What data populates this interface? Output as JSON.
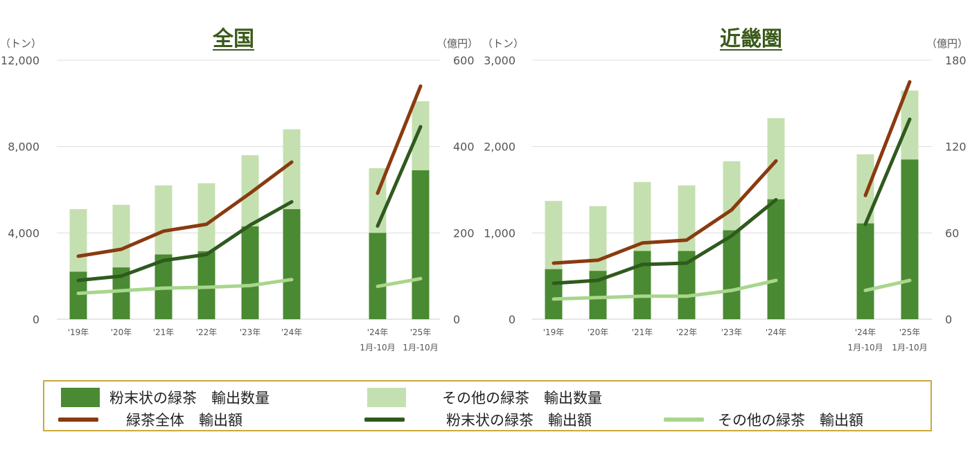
{
  "colors": {
    "powder_bar": "#4a8a32",
    "other_bar": "#c5e0b0",
    "total_line": "#8a3a10",
    "powder_line": "#2f5a1e",
    "other_line": "#a8d68c",
    "title": "#3a5a1a",
    "grid": "#dddddd",
    "axis_text": "#555555",
    "legend_border": "#c9a93a"
  },
  "legend": {
    "powder_qty": "粉末状の緑茶　輸出数量",
    "other_qty": "その他の緑茶　輸出数量",
    "total_val": "緑茶全体　輸出額",
    "powder_val": "粉末状の緑茶　輸出額",
    "other_val": "その他の緑茶　輸出額"
  },
  "chart_data": [
    {
      "type": "bar",
      "title": "全国",
      "ylabel_left": "（トン）",
      "ylabel_right": "（億円）",
      "ylim_left": [
        0,
        12000
      ],
      "ylim_right": [
        0,
        600
      ],
      "yticks_left": [
        "0",
        "4,000",
        "8,000",
        "12,000"
      ],
      "yticks_right": [
        "0",
        "200",
        "400",
        "600"
      ],
      "categories": [
        "'19年",
        "'20年",
        "'21年",
        "'22年",
        "'23年",
        "'24年",
        "'24年\n1月-10月",
        "'25年\n1月-10月"
      ],
      "series": [
        {
          "name": "粉末状の緑茶　輸出数量",
          "kind": "bar",
          "axis": "left",
          "stack": "base",
          "values": [
            2200,
            2400,
            3000,
            3150,
            4300,
            5100,
            4000,
            6900
          ]
        },
        {
          "name": "その他の緑茶　輸出数量",
          "kind": "bar",
          "axis": "left",
          "stack": "top",
          "values": [
            2900,
            2900,
            3200,
            3150,
            3300,
            3700,
            3000,
            3200
          ]
        },
        {
          "name": "緑茶全体　輸出額",
          "kind": "line",
          "axis": "right",
          "values": [
            146,
            162,
            204,
            220,
            292,
            364,
            292,
            540
          ]
        },
        {
          "name": "粉末状の緑茶　輸出額",
          "kind": "line",
          "axis": "right",
          "values": [
            90,
            100,
            136,
            150,
            218,
            272,
            216,
            446
          ]
        },
        {
          "name": "その他の緑茶　輸出額",
          "kind": "line",
          "axis": "right",
          "values": [
            60,
            66,
            72,
            74,
            78,
            92,
            76,
            94
          ]
        }
      ]
    },
    {
      "type": "bar",
      "title": "近畿圏",
      "ylabel_left": "（トン）",
      "ylabel_right": "（億円）",
      "ylim_left": [
        0,
        3000
      ],
      "ylim_right": [
        0,
        180
      ],
      "yticks_left": [
        "0",
        "1,000",
        "2,000",
        "3,000"
      ],
      "yticks_right": [
        "0",
        "60",
        "120",
        "180"
      ],
      "categories": [
        "'19年",
        "'20年",
        "'21年",
        "'22年",
        "'23年",
        "'24年",
        "'24年\n1月-10月",
        "'25年\n1月-10月"
      ],
      "series": [
        {
          "name": "粉末状の緑茶　輸出数量",
          "kind": "bar",
          "axis": "left",
          "stack": "base",
          "values": [
            580,
            560,
            790,
            790,
            1030,
            1390,
            1110,
            1850
          ]
        },
        {
          "name": "その他の緑茶　輸出数量",
          "kind": "bar",
          "axis": "left",
          "stack": "top",
          "values": [
            790,
            750,
            800,
            760,
            800,
            940,
            800,
            800
          ]
        },
        {
          "name": "緑茶全体　輸出額",
          "kind": "line",
          "axis": "right",
          "values": [
            39,
            41,
            53,
            55,
            76,
            110,
            86,
            165
          ]
        },
        {
          "name": "粉末状の緑茶　輸出額",
          "kind": "line",
          "axis": "right",
          "values": [
            25,
            27,
            38,
            39,
            58,
            83,
            66,
            139
          ]
        },
        {
          "name": "その他の緑茶　輸出額",
          "kind": "line",
          "axis": "right",
          "values": [
            14,
            15,
            16,
            16,
            20,
            27,
            20,
            27
          ]
        }
      ]
    }
  ]
}
